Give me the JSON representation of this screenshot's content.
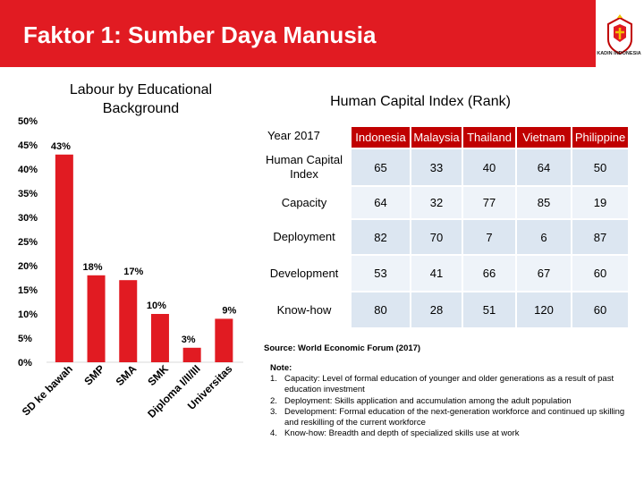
{
  "header": {
    "title": "Faktor 1: Sumber Daya Manusia",
    "logo_text": "KADIN INDONESIA",
    "band_color": "#e11b22"
  },
  "chart_title": "Labour by Educational Background",
  "chart_data": {
    "type": "bar",
    "title": "Labour by Educational Background",
    "categories": [
      "SD ke bawah",
      "SMP",
      "SMA",
      "SMK",
      "Diploma I/II/III",
      "Universitas"
    ],
    "values": [
      43,
      18,
      17,
      10,
      3,
      9
    ],
    "data_labels": [
      "43%",
      "18%",
      "17%",
      "10%",
      "3%",
      "9%"
    ],
    "ylim": [
      0,
      50
    ],
    "yticks": [
      "0%",
      "5%",
      "10%",
      "15%",
      "20%",
      "25%",
      "30%",
      "35%",
      "40%",
      "45%",
      "50%"
    ],
    "grid": false,
    "bar_color": "#e11b22"
  },
  "table": {
    "title": "Human Capital Index (Rank)",
    "corner": "Year 2017",
    "countries": [
      "Indonesia",
      "Malaysia",
      "Thailand",
      "Vietnam",
      "Philippine"
    ],
    "rows": [
      {
        "label": "Human Capital Index",
        "values": [
          "65",
          "33",
          "40",
          "64",
          "50"
        ]
      },
      {
        "label": "Capacity",
        "values": [
          "64",
          "32",
          "77",
          "85",
          "19"
        ]
      },
      {
        "label": "Deployment",
        "values": [
          "82",
          "70",
          "7",
          "6",
          "87"
        ]
      },
      {
        "label": "Development",
        "values": [
          "53",
          "41",
          "66",
          "67",
          "60"
        ]
      },
      {
        "label": "Know-how",
        "values": [
          "80",
          "28",
          "51",
          "120",
          "60"
        ]
      }
    ],
    "header_color": "#c00000"
  },
  "source": "Source: World Economic Forum (2017)",
  "notes": {
    "heading": "Note:",
    "items": [
      {
        "num": "1.",
        "text": "Capacity: Level of formal education of younger and older generations as a result of past education investment"
      },
      {
        "num": "2.",
        "text": "Deployment: Skills application and accumulation among the adult population"
      },
      {
        "num": "3.",
        "text": "Development: Formal education of the next-generation workforce and continued up skilling and reskilling of the current workforce"
      },
      {
        "num": "4.",
        "text": "Know-how: Breadth and depth of specialized skills use at work"
      }
    ]
  }
}
